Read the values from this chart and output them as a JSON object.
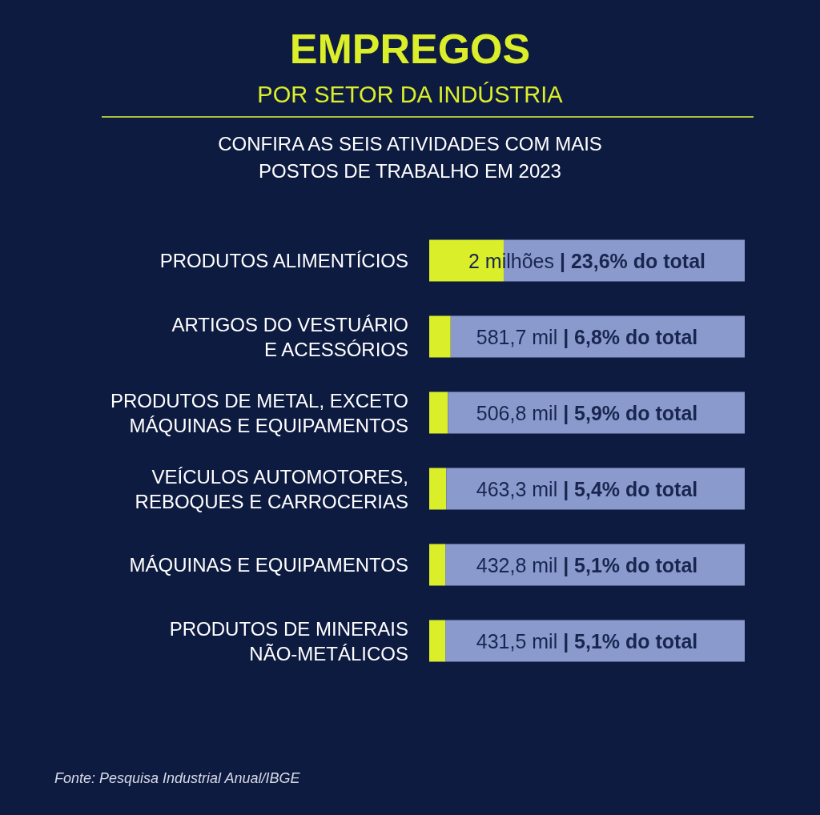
{
  "chart_data": {
    "type": "bar",
    "orientation": "horizontal",
    "stacked": true,
    "title": "EMPREGOS",
    "subtitle": "POR SETOR DA INDÚSTRIA",
    "annotations": [
      "CONFIRA AS SEIS ATIVIDADES COM MAIS\nPOSTOS DE TRABALHO EM 2023",
      "Fonte: Pesquisa Industrial Anual/IBGE"
    ],
    "categories": [
      "PRODUTOS ALIMENTÍCIOS",
      "ARTIGOS DO VESTUÁRIO\nE ACESSÓRIOS",
      "PRODUTOS DE METAL, EXCETO\nMÁQUINAS E EQUIPAMENTOS",
      "VEÍCULOS AUTOMOTORES,\nREBOQUES E CARROCERIAS",
      "MÁQUINAS E EQUIPAMENTOS",
      "PRODUTOS DE MINERAIS\nNÃO-METÁLICOS"
    ],
    "series": [
      {
        "color": "#dbee2a",
        "values": [
          23.6,
          6.8,
          5.9,
          5.4,
          5.1,
          5.1
        ],
        "value_labels": [
          "2 milhões | 23,6% do total",
          "581,7 mil | 6,8% do total",
          "506,8 mil | 5,9% do total",
          "463,3 mil | 5,4% do total",
          "432,8 mil | 5,1% do total",
          "431,5 mil | 5,1% do total"
        ]
      },
      {
        "color": "#8a9acd",
        "values": [
          76.4,
          93.2,
          94.1,
          94.6,
          94.9,
          94.9
        ]
      }
    ]
  }
}
